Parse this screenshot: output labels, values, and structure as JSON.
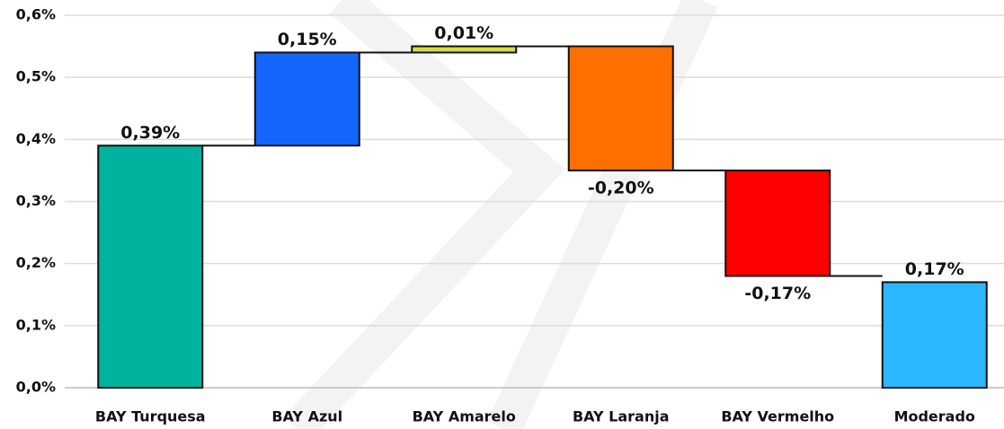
{
  "chart_data": {
    "type": "waterfall",
    "categories": [
      "BAY Turquesa",
      "BAY Azul",
      "BAY Amarelo",
      "BAY Laranja",
      "BAY Vermelho",
      "Moderado"
    ],
    "values": [
      0.39,
      0.15,
      0.01,
      -0.2,
      -0.17,
      0.17
    ],
    "value_labels": [
      "0,39%",
      "0,15%",
      "0,01%",
      "-0,20%",
      "-0,17%",
      "0,17%"
    ],
    "measure": [
      "relative",
      "relative",
      "relative",
      "relative",
      "relative",
      "total"
    ],
    "colors": [
      "#00b39e",
      "#1565ff",
      "#d8d84c",
      "#ff6f00",
      "#ff0000",
      "#2bb8ff"
    ],
    "ylim": [
      0,
      0.6
    ],
    "yticks": [
      {
        "value": 0,
        "label": "0,0%"
      },
      {
        "value": 0.1,
        "label": "0,1%"
      },
      {
        "value": 0.2,
        "label": "0,2%"
      },
      {
        "value": 0.3,
        "label": "0,3%"
      },
      {
        "value": 0.4,
        "label": "0,4%"
      },
      {
        "value": 0.5,
        "label": "0,5%"
      },
      {
        "value": 0.6,
        "label": "0,6%"
      }
    ],
    "grid": true
  }
}
